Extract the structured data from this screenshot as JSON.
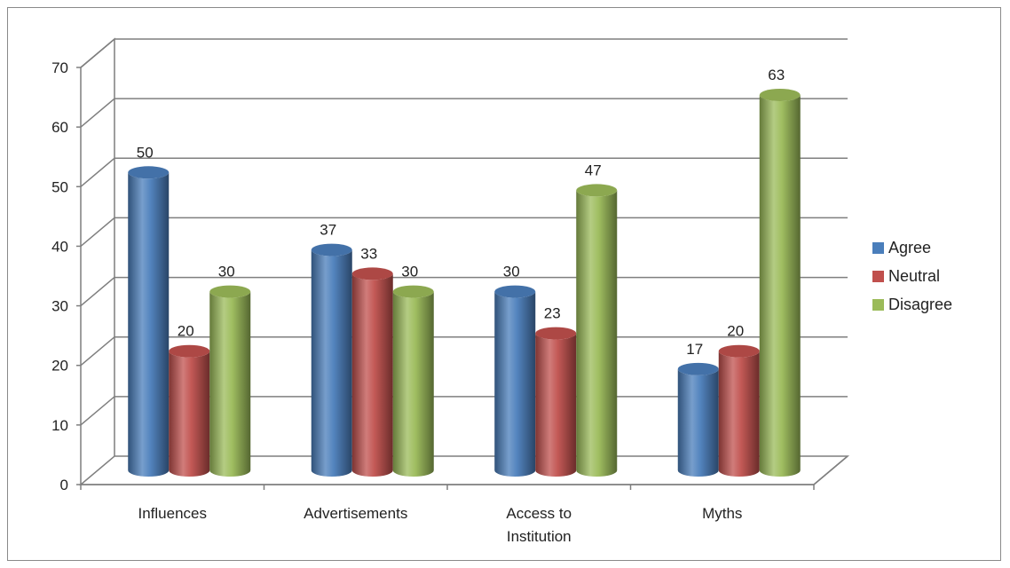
{
  "chart_data": {
    "type": "bar",
    "categories": [
      [
        "Influences"
      ],
      [
        "Advertisements"
      ],
      [
        "Access to",
        "Institution"
      ],
      [
        "Myths"
      ]
    ],
    "series": [
      {
        "name": "Agree",
        "values": [
          50,
          37,
          30,
          17
        ],
        "color": "#4a7ebb"
      },
      {
        "name": "Neutral",
        "values": [
          20,
          33,
          23,
          20
        ],
        "color": "#c0504d"
      },
      {
        "name": "Disagree",
        "values": [
          30,
          30,
          47,
          63
        ],
        "color": "#9bbb59"
      }
    ],
    "y_ticks": [
      "0",
      "10",
      "20",
      "30",
      "40",
      "50",
      "60",
      "70"
    ],
    "ylim": [
      0,
      70
    ],
    "grid": true,
    "style": "3d-cylinder",
    "legend_position": "right"
  }
}
